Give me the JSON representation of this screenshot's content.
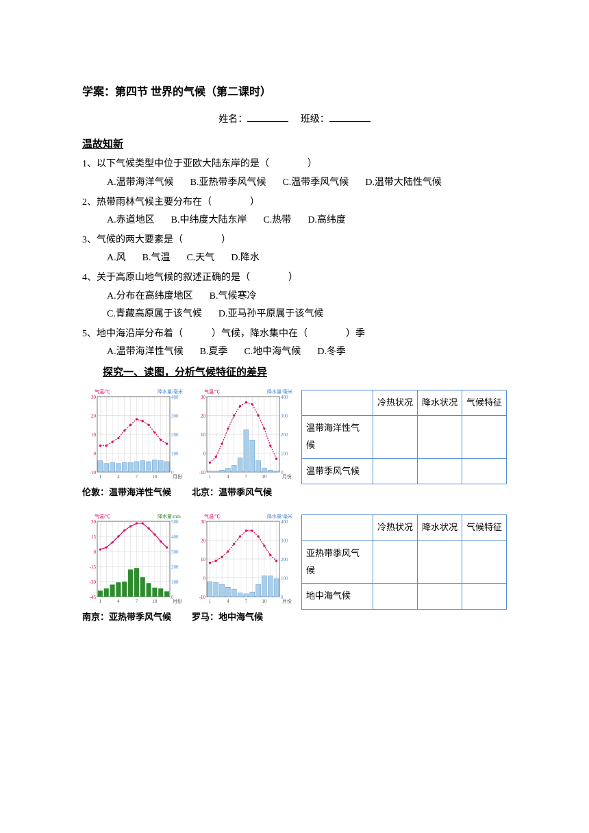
{
  "title": "学案：第四节 世界的气候（第二课时）",
  "header": {
    "name_label": "姓名：",
    "class_label": "班级："
  },
  "review": {
    "heading": "温故知新",
    "q1": {
      "text": "1、以下气候类型中位于亚欧大陆东岸的是（　　　　）",
      "a": "A.温带海洋气候",
      "b": "B.亚热带季风气候",
      "c": "C.温带季风气候",
      "d": "D.温带大陆性气候"
    },
    "q2": {
      "text": "2、热带雨林气候主要分布在（　　　　）",
      "a": "A.赤道地区",
      "b": "B.中纬度大陆东岸",
      "c": "C.热带",
      "d": "D.高纬度"
    },
    "q3": {
      "text": "3、气候的两大要素是（　　　　）",
      "a": "A.风",
      "b": "B.气温",
      "c": "C.天气",
      "d": "D.降水"
    },
    "q4": {
      "text": "4、关于高原山地气候的叙述正确的是（　　　　）",
      "a": "A.分布在高纬度地区",
      "b": "B.气候寒冷",
      "c": "C.青藏高原属于该气候",
      "d": "D.亚马孙平原属于该气候"
    },
    "q5": {
      "text": "5、地中海沿岸分布着（　　　）气候，降水集中在（　　　　）季",
      "a": "A.温带海洋性气候",
      "b": "B.夏季",
      "c": "C.地中海气候",
      "d": "D.冬季"
    }
  },
  "explore": {
    "heading": "探究一、读图，分析气候特征的差异"
  },
  "table1": {
    "h1": "冷热状况",
    "h2": "降水状况",
    "h3": "气候特征",
    "r1": "温带海洋性气候",
    "r2": "温带季风气候"
  },
  "table2": {
    "h1": "冷热状况",
    "h2": "降水状况",
    "h3": "气候特征",
    "r1": "亚热带季风气候",
    "r2": "地中海气候"
  },
  "charts": {
    "axis_colors": {
      "temp": "#d8005f",
      "precip": "#4a8bd0",
      "precip_bar": "#a9cfe8",
      "precip_green": "#2e8b2e",
      "grid": "#cccccc",
      "axis": "#555"
    },
    "temp_axis_label": "气温/℃",
    "precip_axis_label": "降水量/毫米",
    "precip_axis_label_mm": "降水量/mm",
    "month_label": "月份",
    "temp_ticks": [
      -10,
      0,
      10,
      20,
      30
    ],
    "precip_ticks": [
      0,
      100,
      200,
      300,
      400
    ],
    "nanjing_temp_ticks": [
      -45,
      -30,
      -15,
      0,
      15,
      30
    ],
    "nanjing_precip_ticks": [
      0,
      100,
      200,
      300,
      400,
      500
    ],
    "month_ticks": [
      1,
      4,
      7,
      10
    ],
    "london": {
      "caption": "伦敦：温带海洋性气候",
      "temp": [
        4,
        4,
        6,
        8,
        12,
        15,
        18,
        17,
        15,
        11,
        7,
        5
      ],
      "precip": [
        60,
        45,
        50,
        45,
        50,
        50,
        55,
        60,
        55,
        65,
        60,
        55
      ]
    },
    "beijing": {
      "caption": "北京：温带季风气候",
      "temp": [
        -5,
        -2,
        5,
        13,
        20,
        25,
        27,
        26,
        20,
        13,
        4,
        -3
      ],
      "precip": [
        5,
        5,
        10,
        20,
        35,
        75,
        225,
        170,
        60,
        20,
        10,
        5
      ]
    },
    "nanjing": {
      "caption": "南京：亚热带季风气候",
      "temp": [
        2,
        4,
        9,
        15,
        21,
        25,
        28,
        28,
        23,
        17,
        10,
        4
      ],
      "precip": [
        40,
        55,
        80,
        95,
        100,
        180,
        190,
        130,
        90,
        60,
        55,
        35
      ]
    },
    "rome": {
      "caption": "罗马：地中海气候",
      "temp": [
        8,
        9,
        11,
        14,
        18,
        22,
        25,
        25,
        22,
        17,
        12,
        9
      ],
      "precip": [
        80,
        75,
        65,
        50,
        40,
        20,
        15,
        25,
        65,
        110,
        110,
        95
      ]
    }
  }
}
